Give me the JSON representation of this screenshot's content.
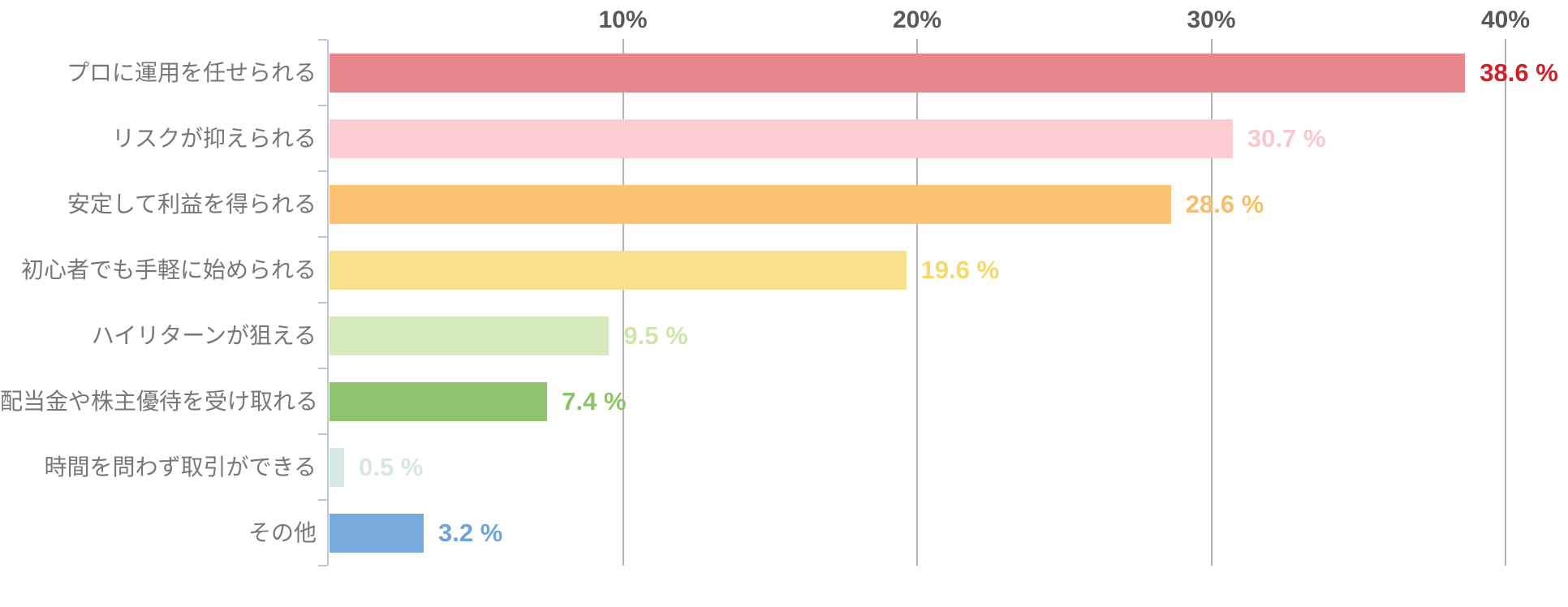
{
  "chart_data": {
    "type": "bar",
    "orientation": "horizontal",
    "title": "",
    "xlabel": "",
    "ylabel": "",
    "categories": [
      "プロに運用を任せられる",
      "リスクが抑えられる",
      "安定して利益を得られる",
      "初心者でも手軽に始められる",
      "ハイリターンが狙える",
      "配当金や株主優待を受け取れる",
      "時間を問わず取引ができる",
      "その他"
    ],
    "values": [
      38.6,
      30.7,
      28.6,
      19.6,
      9.5,
      7.4,
      0.5,
      3.2
    ],
    "value_labels": [
      "38.6 %",
      "30.7 %",
      "28.6 %",
      "19.6 %",
      "9.5 %",
      "7.4 %",
      "0.5 %",
      "3.2 %"
    ],
    "bar_colors": [
      "#E8868D",
      "#FBCDD2",
      "#FBC373",
      "#F7E18A",
      "#D6E9BA",
      "#8DC46D",
      "#D6E7E5",
      "#7AABDF"
    ],
    "value_label_colors": [
      "#D21F26",
      "#F9C8CD",
      "#FABD66",
      "#F5D96E",
      "#CEE5AC",
      "#8AC368",
      "#D5E7E4",
      "#6FA3DB"
    ],
    "x_ticks": [
      "10%",
      "20%",
      "30%",
      "40%"
    ],
    "x_tick_values": [
      10,
      20,
      30,
      40
    ],
    "xlim": [
      0,
      42
    ],
    "grid": true,
    "legend_position": "none",
    "colors": {
      "background": "#FFFFFF",
      "axis_line": "#B9C7D7",
      "gridline": "#B3B3B3",
      "tick_label": "#595959",
      "category_label": "#777777"
    }
  }
}
